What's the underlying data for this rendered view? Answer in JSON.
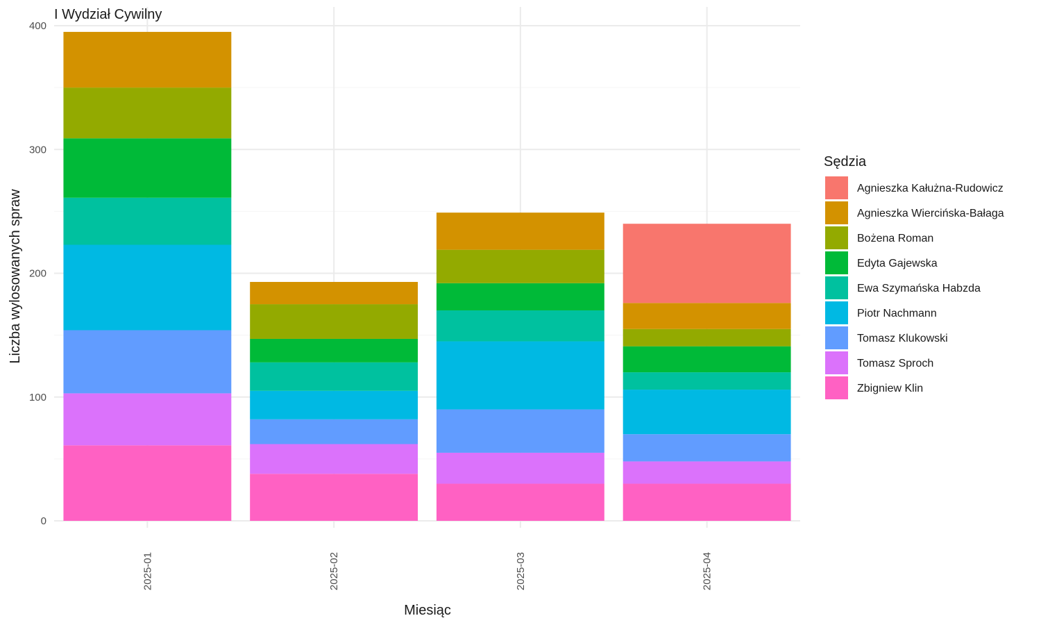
{
  "chart_data": {
    "type": "bar",
    "stacked": true,
    "title": "I Wydział Cywilny",
    "xlabel": "Miesiąc",
    "ylabel": "Liczba wylosowanych spraw",
    "ylim": [
      0,
      400
    ],
    "yticks": [
      "0",
      "100",
      "200",
      "300",
      "400"
    ],
    "grid": true,
    "legend_title": "Sędzia",
    "legend_position": "right",
    "categories": [
      "2025-01",
      "2025-02",
      "2025-03",
      "2025-04"
    ],
    "series": [
      {
        "name": "Zbigniew Klin",
        "color": "#FF61C3",
        "values": [
          61,
          38,
          30,
          30
        ]
      },
      {
        "name": "Tomasz Sproch",
        "color": "#DB72FB",
        "values": [
          42,
          24,
          25,
          18
        ]
      },
      {
        "name": "Tomasz Klukowski",
        "color": "#619CFF",
        "values": [
          51,
          20,
          35,
          22
        ]
      },
      {
        "name": "Piotr Nachmann",
        "color": "#00B9E3",
        "values": [
          69,
          23,
          55,
          36
        ]
      },
      {
        "name": "Ewa Szymańska Habzda",
        "color": "#00C19F",
        "values": [
          38,
          23,
          25,
          14
        ]
      },
      {
        "name": "Edyta Gajewska",
        "color": "#00BA38",
        "values": [
          48,
          19,
          22,
          21
        ]
      },
      {
        "name": "Bożena Roman",
        "color": "#93AA00",
        "values": [
          41,
          28,
          27,
          14
        ]
      },
      {
        "name": "Agnieszka Wiercińska-Bałaga",
        "color": "#D39200",
        "values": [
          45,
          18,
          30,
          21
        ]
      },
      {
        "name": "Agnieszka Kałużna-Rudowicz",
        "color": "#F8766D",
        "values": [
          0,
          0,
          0,
          64
        ]
      }
    ],
    "legend_order": [
      "Agnieszka Kałużna-Rudowicz",
      "Agnieszka Wiercińska-Bałaga",
      "Bożena Roman",
      "Edyta Gajewska",
      "Ewa Szymańska Habzda",
      "Piotr Nachmann",
      "Tomasz Klukowski",
      "Tomasz Sproch",
      "Zbigniew Klin"
    ]
  }
}
